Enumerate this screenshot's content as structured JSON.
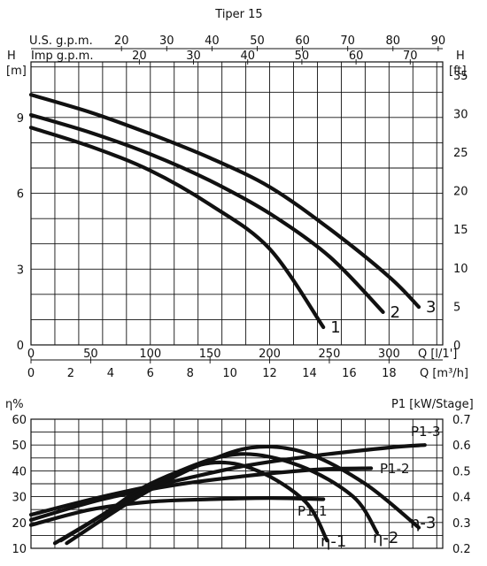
{
  "chart_data": [
    {
      "type": "line",
      "title": "Tiper 15",
      "top_axes": [
        {
          "label": "U.S. g.p.m.",
          "ticks": [
            20,
            30,
            40,
            50,
            60,
            70,
            80,
            90
          ],
          "range": [
            0,
            91
          ]
        },
        {
          "label": "Imp g.p.m.",
          "ticks": [
            20,
            30,
            40,
            50,
            60,
            70
          ],
          "range": [
            0,
            76
          ]
        }
      ],
      "bottom_axes": [
        {
          "label": "Q [l/1']",
          "ticks": [
            0,
            50,
            100,
            150,
            200,
            250,
            300
          ],
          "range": [
            0,
            345
          ]
        },
        {
          "label": "Q [m³/h]",
          "ticks": [
            0,
            2,
            4,
            6,
            8,
            10,
            12,
            14,
            16,
            18
          ],
          "range": [
            0,
            20.7
          ]
        }
      ],
      "left_axis": {
        "label_top": "H",
        "label_unit": "[m]",
        "ticks": [
          0,
          3,
          6,
          9
        ],
        "range": [
          0,
          11.2
        ]
      },
      "right_axis": {
        "label_top": "H",
        "label_unit": "[ft]",
        "ticks": [
          0,
          5,
          10,
          15,
          20,
          25,
          30,
          35
        ],
        "range": [
          0,
          36.7
        ]
      },
      "grid": true,
      "x_unit": "l/min",
      "series": [
        {
          "name": "1",
          "points": [
            [
              0,
              8.6
            ],
            [
              50,
              7.85
            ],
            [
              100,
              6.9
            ],
            [
              150,
              5.55
            ],
            [
              200,
              3.8
            ],
            [
              245,
              0.7
            ]
          ]
        },
        {
          "name": "2",
          "points": [
            [
              0,
              9.1
            ],
            [
              50,
              8.4
            ],
            [
              100,
              7.55
            ],
            [
              150,
              6.5
            ],
            [
              200,
              5.2
            ],
            [
              250,
              3.5
            ],
            [
              295,
              1.3
            ]
          ]
        },
        {
          "name": "3",
          "points": [
            [
              0,
              9.9
            ],
            [
              50,
              9.2
            ],
            [
              100,
              8.35
            ],
            [
              150,
              7.4
            ],
            [
              200,
              6.25
            ],
            [
              250,
              4.6
            ],
            [
              300,
              2.7
            ],
            [
              325,
              1.5
            ]
          ]
        }
      ]
    },
    {
      "type": "line",
      "left_axis": {
        "label": "η%",
        "ticks": [
          10,
          20,
          30,
          40,
          50,
          60
        ],
        "range": [
          10,
          60
        ]
      },
      "right_axis": {
        "label": "P1 [kW/Stage]",
        "ticks": [
          0.2,
          0.3,
          0.4,
          0.5,
          0.6,
          0.7
        ],
        "range": [
          0.2,
          0.7
        ]
      },
      "grid": true,
      "x_unit": "l/min",
      "x_range": [
        0,
        345
      ],
      "efficiency_series": [
        {
          "name": "η-1",
          "points": [
            [
              20,
              12
            ],
            [
              60,
              23
            ],
            [
              100,
              35
            ],
            [
              150,
              43
            ],
            [
              190,
              40
            ],
            [
              230,
              28
            ],
            [
              248,
              13
            ]
          ]
        },
        {
          "name": "η-2",
          "points": [
            [
              25,
              13
            ],
            [
              75,
              27
            ],
            [
              125,
              40
            ],
            [
              175,
              46.5
            ],
            [
              225,
              42
            ],
            [
              270,
              30
            ],
            [
              290,
              16
            ]
          ]
        },
        {
          "name": "η-3",
          "points": [
            [
              30,
              12
            ],
            [
              90,
              30
            ],
            [
              140,
              42
            ],
            [
              185,
              49
            ],
            [
              230,
              47
            ],
            [
              280,
              35
            ],
            [
              325,
              18
            ]
          ]
        }
      ],
      "power_series": [
        {
          "name": "P1-1",
          "points": [
            [
              0,
              0.29
            ],
            [
              50,
              0.35
            ],
            [
              100,
              0.38
            ],
            [
              150,
              0.39
            ],
            [
              200,
              0.395
            ],
            [
              245,
              0.39
            ]
          ]
        },
        {
          "name": "P1-2",
          "points": [
            [
              0,
              0.31
            ],
            [
              60,
              0.39
            ],
            [
              120,
              0.445
            ],
            [
              180,
              0.48
            ],
            [
              240,
              0.505
            ],
            [
              285,
              0.51
            ]
          ]
        },
        {
          "name": "P1-3",
          "points": [
            [
              0,
              0.33
            ],
            [
              60,
              0.4
            ],
            [
              120,
              0.46
            ],
            [
              180,
              0.52
            ],
            [
              240,
              0.56
            ],
            [
              300,
              0.59
            ],
            [
              330,
              0.6
            ]
          ]
        }
      ]
    }
  ]
}
